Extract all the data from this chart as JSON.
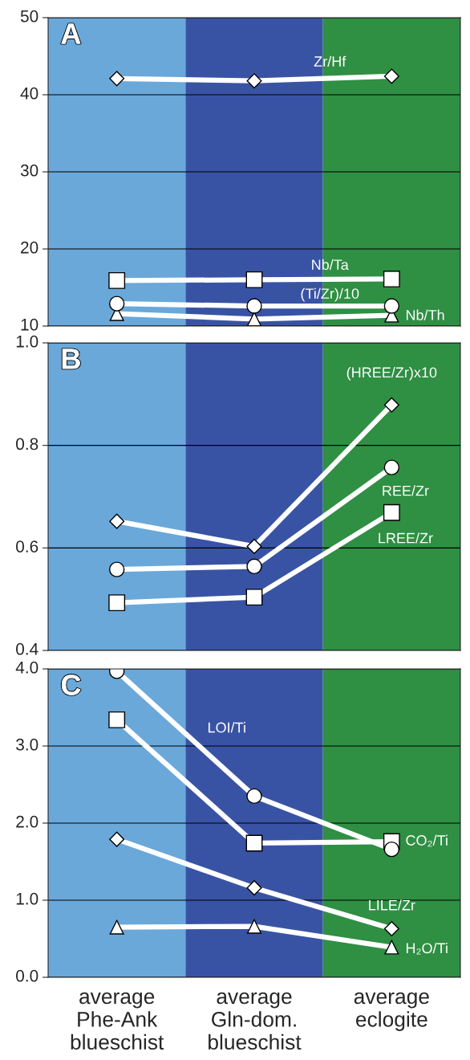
{
  "chart_data": [
    {
      "type": "line",
      "categories": [
        "average\nPhe-Ank\nblueschist",
        "average\nGln-dom.\nblueschist",
        "average\neclogite"
      ],
      "ylim": [
        10,
        50
      ],
      "yticks": [
        10,
        20,
        30,
        40,
        50
      ],
      "grid": "y",
      "tick_labels": "y",
      "line_style": "solid",
      "legend": false,
      "annotations": [
        "A"
      ],
      "bands": [
        {
          "axis": "x",
          "from": "average\nPhe-Ank\nblueschist",
          "to": "average\nPhe-Ank\nblueschist",
          "color": "#6aa8da"
        },
        {
          "axis": "x",
          "from": "average\nGln-dom.\nblueschist",
          "to": "average\nGln-dom.\nblueschist",
          "color": "#3953a4"
        },
        {
          "axis": "x",
          "from": "average\neclogite",
          "to": "average\neclogite",
          "color": "#2f8f43"
        }
      ],
      "series": [
        {
          "name": "Zr/Hf",
          "color": "#ffffff",
          "marker": "diamond",
          "values": [
            42.1,
            41.8,
            42.4
          ]
        },
        {
          "name": "Nb/Ta",
          "color": "#ffffff",
          "marker": "square",
          "values": [
            15.9,
            16.0,
            16.1
          ]
        },
        {
          "name": "(Ti/Zr)/10",
          "color": "#ffffff",
          "marker": "circle",
          "values": [
            12.9,
            12.6,
            12.6
          ]
        },
        {
          "name": "Nb/Th",
          "color": "#ffffff",
          "marker": "triangle",
          "values": [
            11.6,
            10.9,
            11.4
          ]
        }
      ]
    },
    {
      "type": "line",
      "categories": [
        "average\nPhe-Ank\nblueschist",
        "average\nGln-dom.\nblueschist",
        "average\neclogite"
      ],
      "ylim": [
        0.4,
        1.0
      ],
      "yticks": [
        {
          "value": 0.4,
          "label": "0.4"
        },
        {
          "value": 0.6,
          "label": "0.6"
        },
        {
          "value": 0.8,
          "label": "0.8"
        },
        {
          "value": 1.0,
          "label": "1.0"
        }
      ],
      "grid": "y",
      "tick_labels": "y",
      "line_style": "solid",
      "legend": false,
      "annotations": [
        "B"
      ],
      "bands": [
        {
          "axis": "x",
          "from": "average\nPhe-Ank\nblueschist",
          "to": "average\nPhe-Ank\nblueschist",
          "color": "#6aa8da"
        },
        {
          "axis": "x",
          "from": "average\nGln-dom.\nblueschist",
          "to": "average\nGln-dom.\nblueschist",
          "color": "#3953a4"
        },
        {
          "axis": "x",
          "from": "average\neclogite",
          "to": "average\neclogite",
          "color": "#2f8f43"
        }
      ],
      "series": [
        {
          "name": "(HREE/Zr)x10",
          "color": "#ffffff",
          "marker": "diamond",
          "values": [
            0.652,
            0.603,
            0.879
          ]
        },
        {
          "name": "REE/Zr",
          "color": "#ffffff",
          "marker": "circle",
          "values": [
            0.558,
            0.564,
            0.757
          ]
        },
        {
          "name": "LREE/Zr",
          "color": "#ffffff",
          "marker": "square",
          "values": [
            0.493,
            0.504,
            0.669
          ]
        }
      ]
    },
    {
      "type": "line",
      "categories": [
        "average\nPhe-Ank\nblueschist",
        "average\nGln-dom.\nblueschist",
        "average\neclogite"
      ],
      "ylim": [
        0,
        4
      ],
      "yticks": [
        {
          "value": 0,
          "label": "0.0"
        },
        {
          "value": 1,
          "label": "1.0"
        },
        {
          "value": 2,
          "label": "2.0"
        },
        {
          "value": 3,
          "label": "3.0"
        },
        {
          "value": 4,
          "label": "4.0"
        }
      ],
      "grid": "y",
      "line_style": "solid",
      "legend": false,
      "annotations": [
        "C"
      ],
      "bands": [
        {
          "axis": "x",
          "from": "average\nPhe-Ank\nblueschist",
          "to": "average\nPhe-Ank\nblueschist",
          "color": "#6aa8da"
        },
        {
          "axis": "x",
          "from": "average\nGln-dom.\nblueschist",
          "to": "average\nGln-dom.\nblueschist",
          "color": "#3953a4"
        },
        {
          "axis": "x",
          "from": "average\neclogite",
          "to": "average\neclogite",
          "color": "#2f8f43"
        }
      ],
      "series": [
        {
          "name": "LOI/Ti",
          "color": "#ffffff",
          "marker": "circle",
          "values": [
            3.97,
            2.35,
            1.66
          ]
        },
        {
          "name": "CO₂/Ti",
          "color": "#ffffff",
          "marker": "square",
          "values": [
            3.34,
            1.74,
            1.76
          ]
        },
        {
          "name": "LILE/Zr",
          "color": "#ffffff",
          "marker": "diamond",
          "values": [
            1.79,
            1.16,
            0.63
          ]
        },
        {
          "name": "H₂O/Ti",
          "color": "#ffffff",
          "marker": "triangle",
          "values": [
            0.65,
            0.66,
            0.39
          ]
        }
      ]
    }
  ]
}
